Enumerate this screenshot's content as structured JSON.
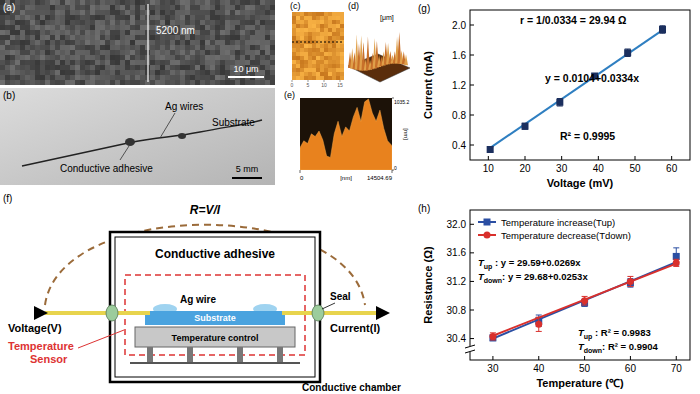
{
  "panels": {
    "a": {
      "label": "(a)",
      "measure": "5200 nm",
      "scale": "10 μm"
    },
    "b": {
      "label": "(b)",
      "ag_wires": "Ag wires",
      "substrate": "Substrate",
      "adhesive": "Conductive adhesive",
      "scale": "5 mm"
    },
    "c": {
      "label": "(c)",
      "ticks": [
        0,
        5,
        10,
        15
      ]
    },
    "d": {
      "label": "(d)",
      "unit": "[μm]"
    },
    "f": {
      "label": "(f)",
      "formula": "R=V/I",
      "adhesive": "Conductive adhesive",
      "ag_wire": "Ag wire",
      "substrate": "Substrate",
      "temperature_control": "Temperature control",
      "voltage": "Voltage(V)",
      "current": "Current(I)",
      "sensor": [
        "Temperature",
        "Sensor"
      ],
      "seal": "Seal",
      "chamber": "Conductive chamber"
    }
  },
  "chart_data": [
    {
      "type": "area",
      "title": "(e)",
      "x_label": "[nm]",
      "y_label": "[nm]",
      "x": [
        0,
        600,
        1200,
        1800,
        2400,
        3000,
        3600,
        4200,
        4800,
        5400,
        6000,
        6600,
        7200,
        7800,
        8400,
        9000,
        9600,
        10200,
        10800,
        11400,
        12000,
        12600,
        13200,
        13800,
        14504.69
      ],
      "values": [
        320,
        420,
        380,
        520,
        480,
        560,
        430,
        200,
        180,
        520,
        700,
        480,
        620,
        560,
        760,
        900,
        700,
        980,
        1020,
        820,
        700,
        860,
        600,
        420,
        350
      ],
      "color": "#e8821e",
      "xlim": [
        0,
        14504.69
      ],
      "ylim": [
        0,
        1035.2
      ],
      "xticks": [
        0,
        14504.69
      ],
      "yticks": [
        0,
        1035.2
      ]
    },
    {
      "type": "scatter",
      "title": "(g)",
      "x_label": "Voltage (mV)",
      "y_label": "Current (mA)",
      "x": [
        10.5,
        20,
        29.5,
        39,
        48,
        57.5
      ],
      "values": [
        0.34,
        0.65,
        0.97,
        1.32,
        1.63,
        1.94
      ],
      "errors": [
        0.03,
        0.04,
        0.05,
        0.03,
        0.05,
        0.05
      ],
      "fit_line": {
        "x": [
          10,
          58
        ],
        "values": [
          0.345,
          1.948
        ]
      },
      "color": "#1b2f5e",
      "marker": "square",
      "xlim": [
        5,
        65
      ],
      "ylim": [
        0.2,
        2.2
      ],
      "xticks": [
        10,
        20,
        30,
        40,
        50,
        60
      ],
      "yticks": [
        0.4,
        0.8,
        1.2,
        1.6,
        {
          "value": 2,
          "label": "2.0"
        }
      ],
      "annotations": [
        "r = 1/0.0334 = 29.94 Ω",
        "y = 0.0104+0.0334x",
        "R² = 0.9995"
      ]
    },
    {
      "type": "scatter",
      "title": "(h)",
      "x_label": "Temperature (℃)",
      "y_label": "Resistance (Ω)",
      "x": [
        30,
        40,
        50,
        60,
        70
      ],
      "series": [
        {
          "name": "Temperature increase(Tup)",
          "color": "#2b4fa3",
          "marker": "square",
          "values": [
            30.41,
            30.65,
            30.9,
            31.18,
            31.55
          ],
          "errors": [
            0.04,
            0.08,
            0.05,
            0.06,
            0.12
          ],
          "fit_line": {
            "x": [
              30,
              70
            ],
            "values": [
              30.4,
              31.47
            ]
          }
        },
        {
          "name": "Temperature decrease(Tdown)",
          "color": "#d9302c",
          "marker": "circle",
          "values": [
            30.43,
            30.6,
            30.93,
            31.2,
            31.46
          ],
          "errors": [
            0.05,
            0.1,
            0.06,
            0.07,
            0.05
          ],
          "fit_line": {
            "x": [
              30,
              70
            ],
            "values": [
              30.44,
              31.45
            ]
          }
        }
      ],
      "legend": "upper left",
      "xlim": [
        25,
        73
      ],
      "ylim": [
        30.1,
        32.2
      ],
      "xticks": [
        30,
        40,
        50,
        60,
        70
      ],
      "yticks": [
        30.4,
        30.8,
        31.2,
        31.6,
        {
          "value": 32,
          "label": "32.0"
        }
      ],
      "annotations": [
        {
          "symbol": "T",
          "sub": "up",
          "text": " : y = 29.59+0.0269x"
        },
        {
          "symbol": "T",
          "sub": "down",
          "text": ": y = 29.68+0.0253x"
        },
        {
          "symbol": "T",
          "sub": "up",
          "text": " : R² = 0.9983"
        },
        {
          "symbol": "T",
          "sub": "down",
          "text": ": R² = 0.9904"
        }
      ]
    }
  ]
}
